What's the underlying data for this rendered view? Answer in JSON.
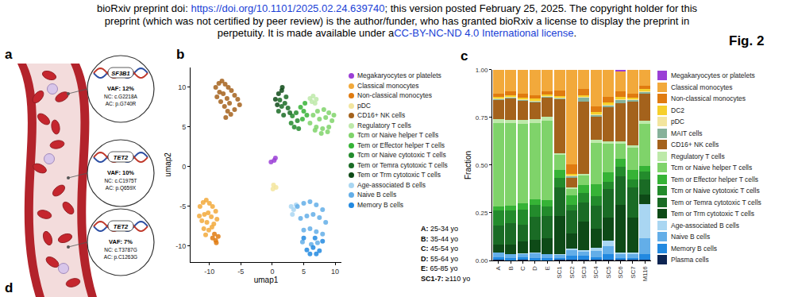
{
  "header": {
    "lines": [
      [
        {
          "text": "bioRxiv preprint doi: "
        },
        {
          "text": "https://doi.org/10.1101/2025.02.24.639740",
          "link": true
        },
        {
          "text": "; this version posted February 25, 2025. The copyright holder for this"
        }
      ],
      [
        {
          "text": "preprint (which was not certified by peer review) is the author/funder, who has granted bioRxiv a license to display the preprint in"
        }
      ],
      [
        {
          "text": "perpetuity. It is made available under a"
        },
        {
          "text": "CC-BY-NC-ND 4.0 International license",
          "link": true
        },
        {
          "text": "."
        }
      ]
    ]
  },
  "figure_label": "Fig. 2",
  "panel_labels": [
    "a",
    "b",
    "c",
    "d"
  ],
  "panel_a": {
    "mutations": [
      {
        "gene": "SF3B1",
        "vaf": "VAF: 12%",
        "nc": "NC: c.G2218A",
        "ac": "AC: p.G740R"
      },
      {
        "gene": "TET2",
        "vaf": "VAF: 10%",
        "nc": "NC: c.C1975T",
        "ac": "AC: p.Q659X"
      },
      {
        "gene": "TET2",
        "vaf": "VAF: 7%",
        "nc": "NC: c.T3787G",
        "ac": "AC: p.C1263G"
      }
    ]
  },
  "age_groups": [
    {
      "key": "A:",
      "text": "25-34 yo"
    },
    {
      "key": "B:",
      "text": "35-44 yo"
    },
    {
      "key": "C:",
      "text": "45-54 yo"
    },
    {
      "key": "D:",
      "text": "55-64 yo"
    },
    {
      "key": "E:",
      "text": "65-85 yo"
    },
    {
      "key": "SC1-7:",
      "text": "≥110 yo"
    }
  ],
  "chart_data": [
    {
      "type": "scatter",
      "xlabel": "umap1",
      "ylabel": "umap2",
      "xlim": [
        -13,
        11
      ],
      "ylim": [
        -12,
        12.5
      ],
      "xticks": [
        -10,
        -5,
        0,
        5,
        10
      ],
      "yticks": [
        -10,
        -5,
        0,
        5,
        10
      ],
      "grid": false,
      "legend": "right",
      "marker": "circle",
      "series": [
        {
          "name": "Megakaryocytes or platelets",
          "color": "#9b3fd6",
          "x": [
            0.3,
            0.5,
            -0.2
          ],
          "y": [
            0.8,
            1.1,
            0.6
          ]
        },
        {
          "name": "Classical monocytes",
          "color": "#f2a93b",
          "x": [
            -11.5,
            -11,
            -10.5,
            -10,
            -9.5,
            -9,
            -10.8,
            -10.2,
            -9.7,
            -11.2,
            -10.4,
            -9.3,
            -10.9,
            -10.1,
            -9.6,
            -11.6,
            -8.8,
            -10.6
          ],
          "y": [
            -5,
            -4.5,
            -4.2,
            -4.6,
            -5,
            -5.6,
            -6,
            -5.8,
            -6.3,
            -6.8,
            -7,
            -7.2,
            -7.8,
            -8,
            -7.6,
            -6.2,
            -6.6,
            -8.6
          ]
        },
        {
          "name": "Non-classical monocytes",
          "color": "#e07b10",
          "x": [
            -9.5,
            -9,
            -8.6,
            -9.2,
            -8.9
          ],
          "y": [
            -9,
            -9.3,
            -8.8,
            -8.5,
            -9.6
          ]
        },
        {
          "name": "pDC",
          "color": "#f3e59e",
          "x": [
            0.2,
            0.6,
            0.1
          ],
          "y": [
            -2.3,
            -2.6,
            -2.8
          ]
        },
        {
          "name": "CD16+ NK cells",
          "color": "#a4621c",
          "x": [
            -9,
            -8.5,
            -8,
            -7.5,
            -7,
            -6.5,
            -6,
            -5.5,
            -8.8,
            -8.2,
            -7.6,
            -7.1,
            -6.6,
            -6,
            -8.4,
            -7.8,
            -7.2,
            -6.8,
            -5.2,
            -7.4
          ],
          "y": [
            10,
            10.5,
            10.8,
            10.4,
            10,
            9.6,
            9,
            8.5,
            8.8,
            8.2,
            7.6,
            7,
            6.6,
            7.2,
            9.4,
            9.2,
            8.6,
            8,
            7.8,
            6.2
          ]
        },
        {
          "name": "Regulatory T cells",
          "color": "#bde9a9",
          "x": [
            6,
            6.5,
            7,
            6.3,
            6.8
          ],
          "y": [
            8.6,
            8.9,
            8.5,
            8.2,
            8
          ]
        },
        {
          "name": "Tcm or Naive helper T cells",
          "color": "#7fd36a",
          "x": [
            6,
            7,
            8,
            9,
            9.5,
            7.5,
            8.5,
            6.5,
            7.2,
            8.2,
            9,
            9.8,
            6.8,
            7.8,
            8.8
          ],
          "y": [
            5.5,
            5,
            4.8,
            5,
            5.8,
            6,
            6.2,
            6.5,
            7,
            7.2,
            6.8,
            6.5,
            4.6,
            4.2,
            4.4
          ]
        },
        {
          "name": "Tem or Effector helper T cells",
          "color": "#36b336",
          "x": [
            4.5,
            5,
            5.5,
            4.8,
            5.2
          ],
          "y": [
            7.5,
            7,
            6.5,
            6,
            8
          ]
        },
        {
          "name": "Tcm or Naive cytotoxic T cells",
          "color": "#238b2c",
          "x": [
            3,
            3.5,
            4,
            3.2,
            3.8,
            4.2
          ],
          "y": [
            5.5,
            5,
            5.8,
            6.4,
            6.8,
            4.8
          ]
        },
        {
          "name": "Tem or Temra cytotoxic T cells",
          "color": "#1a6b25",
          "x": [
            1,
            1.5,
            2,
            2.5,
            1.8,
            2.8,
            1.2,
            2.2
          ],
          "y": [
            7,
            7.6,
            8,
            7.4,
            6.5,
            6.8,
            8.4,
            8.8
          ]
        },
        {
          "name": "Tem or Trm cytotoxic T cells",
          "color": "#0e4a17",
          "x": [
            0.5,
            1,
            1.5,
            0.8,
            1.6
          ],
          "y": [
            8.5,
            9.2,
            9.6,
            7.8,
            10
          ]
        },
        {
          "name": "Age-associated B cells",
          "color": "#a9d6f2",
          "x": [
            3,
            3.4,
            3.8,
            3.2
          ],
          "y": [
            -5,
            -5.4,
            -4.8,
            -6
          ]
        },
        {
          "name": "Naive B cells",
          "color": "#63aee8",
          "x": [
            4,
            5,
            6,
            7,
            8,
            4.5,
            5.5,
            6.5,
            7.5,
            8.5,
            5,
            6,
            7,
            8,
            4.8,
            6.2,
            7.2
          ],
          "y": [
            -5,
            -4.6,
            -4.4,
            -4.8,
            -5.4,
            -6.5,
            -6.2,
            -6,
            -6.4,
            -7,
            -8,
            -7.8,
            -8.2,
            -8.5,
            -9.5,
            -9.8,
            -9.6
          ]
        },
        {
          "name": "Memory B cells",
          "color": "#2289e0",
          "x": [
            5.5,
            6.5,
            7.5,
            6,
            7,
            5,
            8,
            6.8
          ],
          "y": [
            -10.5,
            -10.2,
            -10.6,
            -11,
            -11,
            -9,
            -9.4,
            -9
          ]
        }
      ]
    },
    {
      "type": "bar",
      "stacked": true,
      "ylabel": "Fraction",
      "legend": "right",
      "grid": false,
      "categories": [
        "A",
        "B",
        "C",
        "D",
        "E",
        "SC1",
        "SC2",
        "SC3",
        "SC4",
        "SC5",
        "SC6",
        "SC7",
        "M116"
      ],
      "ylim": [
        0,
        1
      ],
      "yticks": [
        {
          "value": 0,
          "label": "0.00"
        },
        0.25,
        {
          "value": 0.5,
          "label": "0.50"
        },
        0.75,
        {
          "value": 1,
          "label": "1.00"
        }
      ],
      "series": [
        {
          "name": "Megakaryocytes or platelets",
          "color": "#9b3fd6",
          "values": [
            0,
            0,
            0,
            0,
            0,
            0,
            0,
            0,
            0,
            0,
            0.01,
            0,
            0
          ]
        },
        {
          "name": "Classical monocytes",
          "color": "#f2a93b",
          "values": [
            0.125,
            0.114,
            0.125,
            0.132,
            0.113,
            0.108,
            0.494,
            0.102,
            0.192,
            0.143,
            0.104,
            0.125,
            0.082
          ]
        },
        {
          "name": "Non-classical monocytes",
          "color": "#e07b10",
          "values": [
            0.015,
            0.02,
            0.02,
            0.02,
            0.015,
            0.03,
            0.05,
            0.03,
            0.03,
            0.03,
            0.03,
            0.02,
            0.02
          ]
        },
        {
          "name": "DC2",
          "color": "#f6cf2c",
          "values": [
            0.01,
            0.01,
            0.01,
            0.01,
            0.01,
            0.01,
            0.01,
            0.01,
            0.012,
            0.01,
            0.01,
            0.01,
            0.01
          ]
        },
        {
          "name": "pDC",
          "color": "#f3e59e",
          "values": [
            0.003,
            0.003,
            0.002,
            0.003,
            0.002,
            0.002,
            0.003,
            0.003,
            0.003,
            0.003,
            0.003,
            0.002,
            0.003
          ]
        },
        {
          "name": "MAIT cells",
          "color": "#86b19a",
          "values": [
            0.005,
            0.004,
            0.005,
            0.005,
            0.005,
            0.006,
            0.01,
            0.02,
            0.01,
            0.01,
            0.02,
            0.01,
            0.01
          ]
        },
        {
          "name": "CD16+ NK cells",
          "color": "#a4621c",
          "values": [
            0.1,
            0.11,
            0.1,
            0.09,
            0.1,
            0.28,
            0.05,
            0.38,
            0.12,
            0.18,
            0.2,
            0.23,
            0.14
          ]
        },
        {
          "name": "Regulatory T cells",
          "color": "#bde9a9",
          "values": [
            0.02,
            0.02,
            0.02,
            0.02,
            0.02,
            0.01,
            0.01,
            0.01,
            0.015,
            0.01,
            0.01,
            0.01,
            0.02
          ]
        },
        {
          "name": "Tcm or Naive helper T cells",
          "color": "#7fd36a",
          "values": [
            0.44,
            0.43,
            0.42,
            0.4,
            0.42,
            0.08,
            0.03,
            0.05,
            0.22,
            0.15,
            0.08,
            0.12,
            0.22
          ]
        },
        {
          "name": "Tem or Effector helper T cells",
          "color": "#36b336",
          "values": [
            0.02,
            0.025,
            0.03,
            0.03,
            0.03,
            0.04,
            0.05,
            0.04,
            0.06,
            0.05,
            0.04,
            0.05,
            0.03
          ]
        },
        {
          "name": "Tcm or Naive cytotoxic T cells",
          "color": "#238b2c",
          "values": [
            0.08,
            0.07,
            0.08,
            0.06,
            0.05,
            0.05,
            0.03,
            0.05,
            0.05,
            0.04,
            0.05,
            0.04,
            0.04
          ]
        },
        {
          "name": "Tem or Temra cytotoxic T cells",
          "color": "#1a6b25",
          "values": [
            0.1,
            0.11,
            0.09,
            0.12,
            0.12,
            0.15,
            0.12,
            0.1,
            0.12,
            0.15,
            0.15,
            0.16,
            0.08
          ]
        },
        {
          "name": "Tem or Trm cytotoxic T cells",
          "color": "#0e4a17",
          "values": [
            0.04,
            0.05,
            0.06,
            0.07,
            0.08,
            0.2,
            0.08,
            0.15,
            0.1,
            0.12,
            0.25,
            0.18,
            0.05
          ]
        },
        {
          "name": "Age-associated B cells",
          "color": "#a9d6f2",
          "values": [
            0.002,
            0.002,
            0.003,
            0.003,
            0.003,
            0.005,
            0.01,
            0.01,
            0.02,
            0.03,
            0.01,
            0.01,
            0.18
          ]
        },
        {
          "name": "Naive B cells",
          "color": "#63aee8",
          "values": [
            0.025,
            0.02,
            0.02,
            0.025,
            0.02,
            0.015,
            0.03,
            0.02,
            0.03,
            0.04,
            0.02,
            0.02,
            0.08
          ]
        },
        {
          "name": "Memory B cells",
          "color": "#2289e0",
          "values": [
            0.012,
            0.01,
            0.012,
            0.01,
            0.01,
            0.01,
            0.02,
            0.02,
            0.015,
            0.03,
            0.01,
            0.01,
            0.03
          ]
        },
        {
          "name": "Plasma cells",
          "color": "#0d2552",
          "values": [
            0.003,
            0.002,
            0.003,
            0.002,
            0.002,
            0.004,
            0.003,
            0.005,
            0.003,
            0.004,
            0.003,
            0.003,
            0.005
          ]
        }
      ]
    }
  ]
}
